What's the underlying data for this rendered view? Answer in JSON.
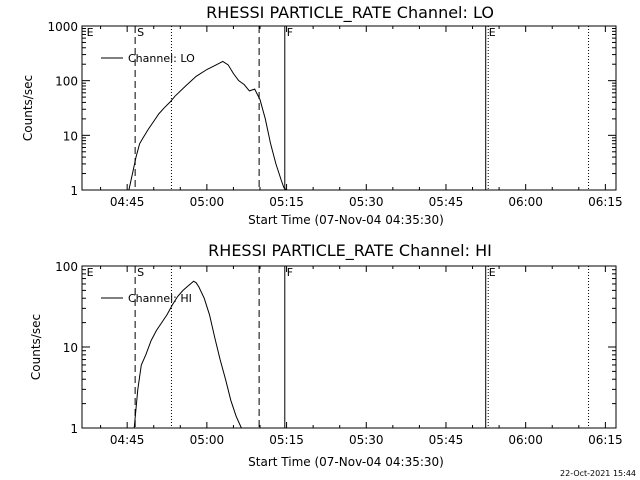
{
  "stamp": "22-Oct-2021 15:44",
  "chart_data": [
    {
      "type": "line",
      "title": "RHESSI PARTICLE_RATE Channel: LO",
      "xlabel": "Start Time (07-Nov-04 04:35:30)",
      "ylabel": "Counts/sec",
      "x_unit": "UT time of day",
      "xlim": [
        "04:36:30",
        "06:17:00"
      ],
      "ylim": [
        1,
        1000
      ],
      "yscale": "log",
      "xticks": [
        "04:45",
        "05:00",
        "05:15",
        "05:30",
        "05:45",
        "06:00",
        "06:15"
      ],
      "yticks": [
        "1",
        "10",
        "100",
        "1000"
      ],
      "legend": {
        "position": "top-left",
        "entries": [
          "Channel: LO"
        ]
      },
      "event_markers": [
        {
          "label": "E",
          "time": "04:37:00",
          "style": "none"
        },
        {
          "label": "S",
          "time": "04:46:30",
          "style": "dashed"
        },
        {
          "label": "",
          "time": "04:53:20",
          "style": "dotted"
        },
        {
          "label": "",
          "time": "05:09:50",
          "style": "dashed"
        },
        {
          "label": "F",
          "time": "05:14:40",
          "style": "solid"
        },
        {
          "label": "E",
          "time": "05:52:40",
          "style": "solid+dotted"
        },
        {
          "label": "",
          "time": "06:11:50",
          "style": "dotted"
        }
      ],
      "series": [
        {
          "name": "Channel: LO",
          "x": [
            "04:45:20",
            "04:46:00",
            "04:46:40",
            "04:47:20",
            "04:48:00",
            "04:49:00",
            "04:50:00",
            "04:51:00",
            "04:52:00",
            "04:53:00",
            "04:54:00",
            "04:56:00",
            "04:58:00",
            "05:00:00",
            "05:02:00",
            "05:03:00",
            "05:04:00",
            "05:05:00",
            "05:06:00",
            "05:07:00",
            "05:08:00",
            "05:09:00",
            "05:10:00",
            "05:11:00",
            "05:12:00",
            "05:13:00",
            "05:14:00",
            "05:14:30",
            "05:15:00"
          ],
          "y": [
            1.0,
            2.0,
            4.0,
            7.0,
            9.0,
            13,
            18,
            25,
            32,
            40,
            52,
            80,
            120,
            160,
            200,
            225,
            195,
            135,
            100,
            85,
            65,
            70,
            45,
            20,
            7,
            3,
            1.5,
            1.1,
            1.0
          ]
        }
      ]
    },
    {
      "type": "line",
      "title": "RHESSI PARTICLE_RATE Channel: HI",
      "xlabel": "Start Time (07-Nov-04 04:35:30)",
      "ylabel": "Counts/sec",
      "x_unit": "UT time of day",
      "xlim": [
        "04:36:30",
        "06:17:00"
      ],
      "ylim": [
        1,
        100
      ],
      "yscale": "log",
      "xticks": [
        "04:45",
        "05:00",
        "05:15",
        "05:30",
        "05:45",
        "06:00",
        "06:15"
      ],
      "yticks": [
        "1",
        "10",
        "100"
      ],
      "legend": {
        "position": "top-left",
        "entries": [
          "Channel: HI"
        ]
      },
      "event_markers": [
        {
          "label": "E",
          "time": "04:37:00",
          "style": "none"
        },
        {
          "label": "S",
          "time": "04:46:30",
          "style": "dashed"
        },
        {
          "label": "",
          "time": "04:53:20",
          "style": "dotted"
        },
        {
          "label": "",
          "time": "05:09:50",
          "style": "dashed"
        },
        {
          "label": "F",
          "time": "05:14:40",
          "style": "solid"
        },
        {
          "label": "E",
          "time": "05:52:40",
          "style": "solid+dotted"
        },
        {
          "label": "",
          "time": "06:11:50",
          "style": "dotted"
        }
      ],
      "series": [
        {
          "name": "Channel: HI",
          "x": [
            "04:46:20",
            "04:47:00",
            "04:47:40",
            "04:48:30",
            "04:49:30",
            "04:50:30",
            "04:51:30",
            "04:52:30",
            "04:53:30",
            "04:54:30",
            "04:55:30",
            "04:56:30",
            "04:57:30",
            "04:58:00",
            "04:58:30",
            "04:59:30",
            "05:00:30",
            "05:01:30",
            "05:02:30",
            "05:03:30",
            "05:04:30",
            "05:05:30",
            "05:06:30"
          ],
          "y": [
            1.0,
            3.0,
            6.0,
            8.0,
            12,
            16,
            20,
            25,
            33,
            42,
            50,
            57,
            65,
            62,
            55,
            40,
            25,
            13,
            7,
            4,
            2.2,
            1.4,
            1.0
          ]
        }
      ]
    }
  ]
}
